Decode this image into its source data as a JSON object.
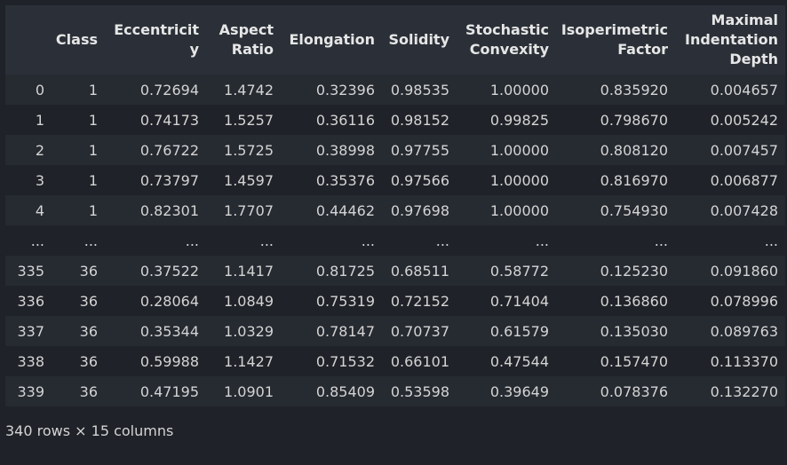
{
  "table": {
    "columns": [
      "",
      "Class",
      "Eccentricity",
      "Aspect Ratio",
      "Elongation",
      "Solidity",
      "Stochastic Convexity",
      "Isoperimetric Factor",
      "Maximal Indentation Depth"
    ],
    "rows": [
      [
        "0",
        "1",
        "0.72694",
        "1.4742",
        "0.32396",
        "0.98535",
        "1.00000",
        "0.835920",
        "0.004657"
      ],
      [
        "1",
        "1",
        "0.74173",
        "1.5257",
        "0.36116",
        "0.98152",
        "0.99825",
        "0.798670",
        "0.005242"
      ],
      [
        "2",
        "1",
        "0.76722",
        "1.5725",
        "0.38998",
        "0.97755",
        "1.00000",
        "0.808120",
        "0.007457"
      ],
      [
        "3",
        "1",
        "0.73797",
        "1.4597",
        "0.35376",
        "0.97566",
        "1.00000",
        "0.816970",
        "0.006877"
      ],
      [
        "4",
        "1",
        "0.82301",
        "1.7707",
        "0.44462",
        "0.97698",
        "1.00000",
        "0.754930",
        "0.007428"
      ],
      [
        "...",
        "...",
        "...",
        "...",
        "...",
        "...",
        "...",
        "...",
        "..."
      ],
      [
        "335",
        "36",
        "0.37522",
        "1.1417",
        "0.81725",
        "0.68511",
        "0.58772",
        "0.125230",
        "0.091860"
      ],
      [
        "336",
        "36",
        "0.28064",
        "1.0849",
        "0.75319",
        "0.72152",
        "0.71404",
        "0.136860",
        "0.078996"
      ],
      [
        "337",
        "36",
        "0.35344",
        "1.0329",
        "0.78147",
        "0.70737",
        "0.61579",
        "0.135030",
        "0.089763"
      ],
      [
        "338",
        "36",
        "0.59988",
        "1.1427",
        "0.71532",
        "0.66101",
        "0.47544",
        "0.157470",
        "0.113370"
      ],
      [
        "339",
        "36",
        "0.47195",
        "1.0901",
        "0.85409",
        "0.53598",
        "0.39649",
        "0.078376",
        "0.132270"
      ]
    ]
  },
  "footer": {
    "text": "340 rows × 15 columns"
  },
  "colors": {
    "background": "#1f2228",
    "header_background": "#2b3038",
    "row_stripe": "#262a31",
    "text": "#d4d4d4"
  }
}
